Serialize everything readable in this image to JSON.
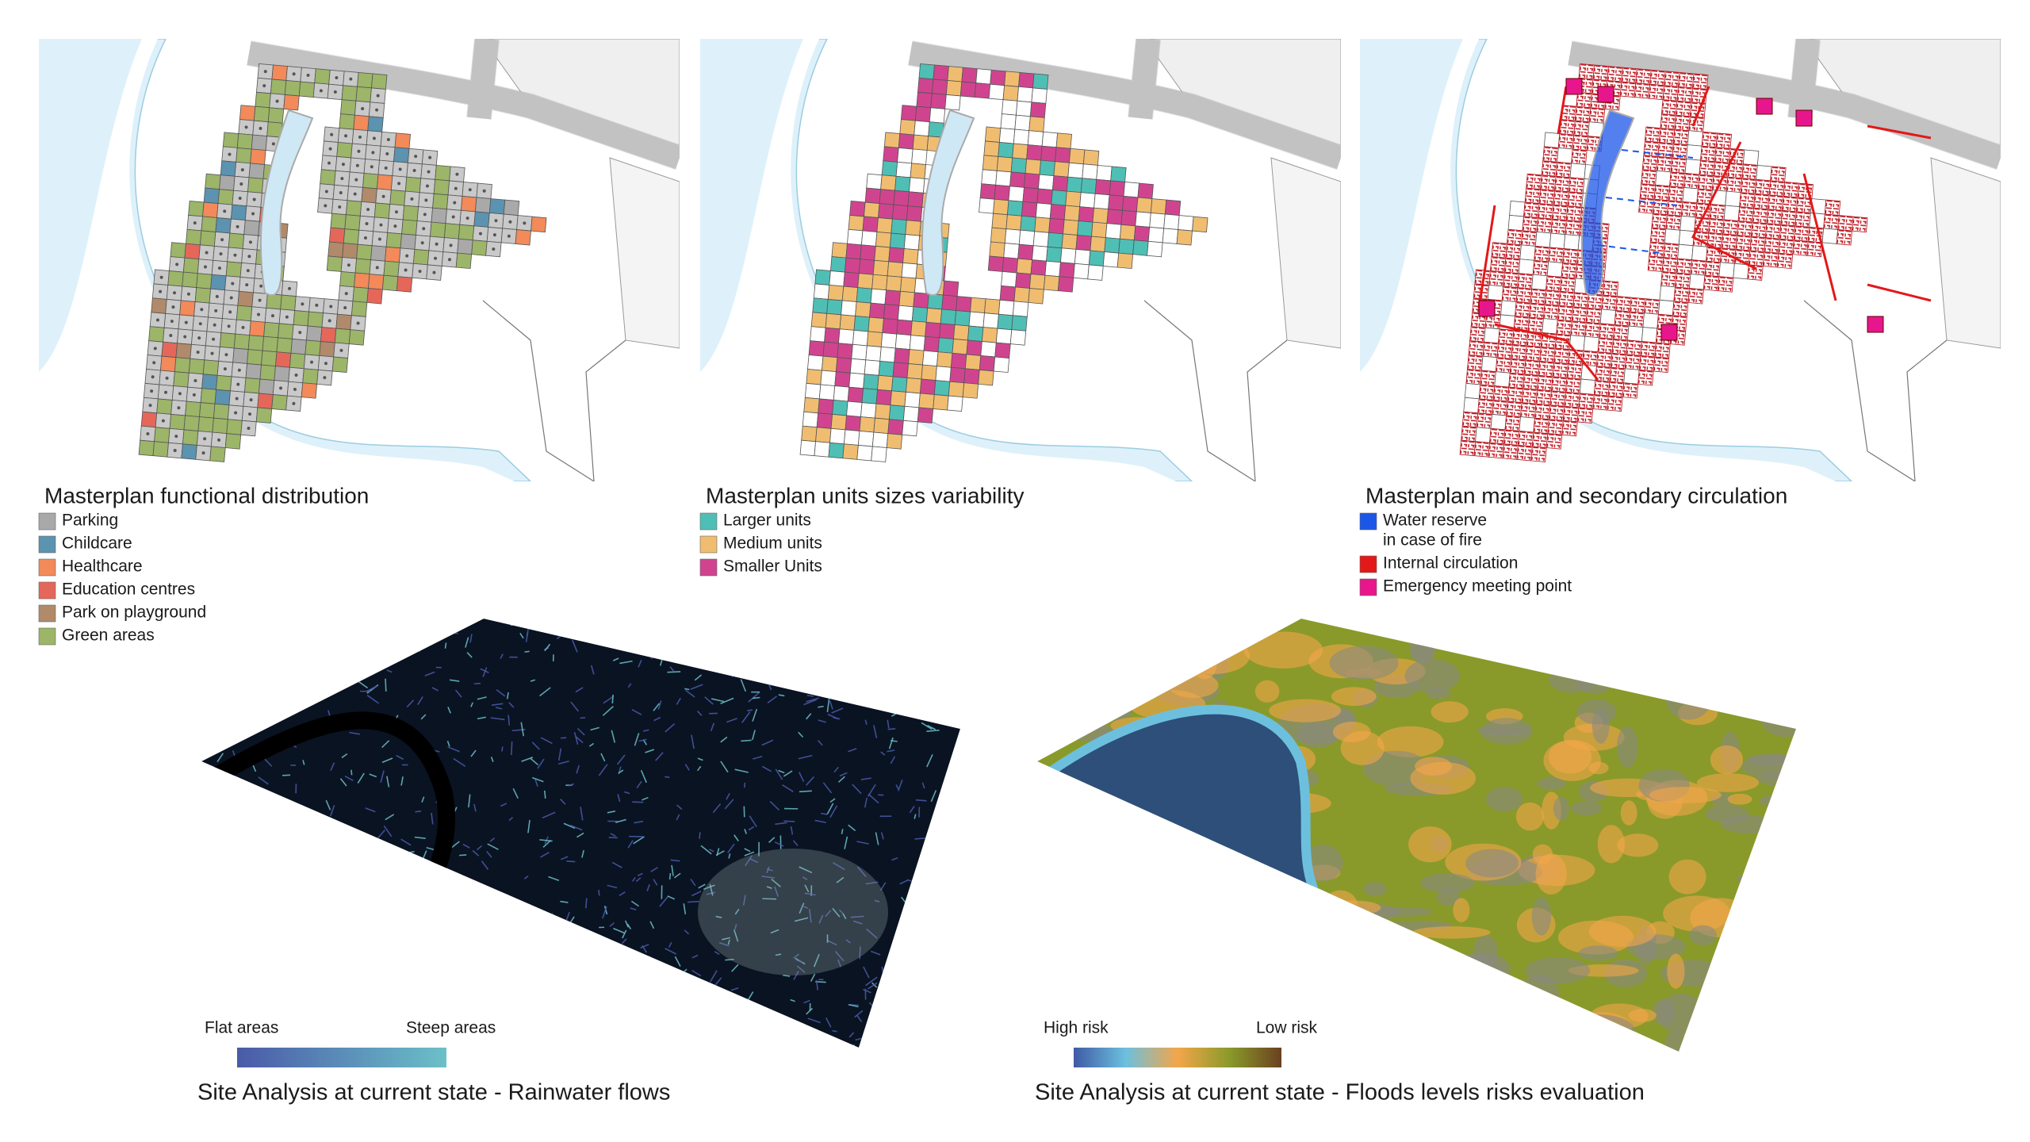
{
  "panels": [
    {
      "title": "Masterplan functional distribution",
      "legend": [
        {
          "label": "Parking",
          "color": "#a9a9a9"
        },
        {
          "label": "Childcare",
          "color": "#5b93b0"
        },
        {
          "label": "Healthcare",
          "color": "#f28a5a"
        },
        {
          "label": "Education centres",
          "color": "#e5675a"
        },
        {
          "label": "Park on playground",
          "color": "#b08a6a"
        },
        {
          "label": "Green areas",
          "color": "#9cb568"
        }
      ]
    },
    {
      "title": "Masterplan units sizes variability",
      "legend": [
        {
          "label": "Larger units",
          "color": "#4fbfb5"
        },
        {
          "label": "Medium units",
          "color": "#f0bd70"
        },
        {
          "label": "Smaller Units",
          "color": "#d0448f"
        }
      ]
    },
    {
      "title": "Masterplan main and secondary circulation",
      "legend": [
        {
          "label": [
            "Water reserve",
            "in case of fire"
          ],
          "color": "#1a56e8"
        },
        {
          "label": "Internal circulation",
          "color": "#e31818"
        },
        {
          "label": "Emergency meeting point",
          "color": "#e8168c"
        }
      ]
    }
  ],
  "analyses": [
    {
      "title": "Site Analysis at current state - Rainwater flows",
      "low_label": "Flat areas",
      "high_label": "Steep areas",
      "gradient": [
        "#4a5aa8",
        "#6bc0c8"
      ]
    },
    {
      "title": "Site Analysis at current state - Floods levels risks evaluation",
      "low_label": "High risk",
      "high_label": "Low risk",
      "gradient": [
        "#3f5aa5",
        "#6cc0de",
        "#f3a64a",
        "#8a9a2a",
        "#6b4020"
      ]
    }
  ]
}
